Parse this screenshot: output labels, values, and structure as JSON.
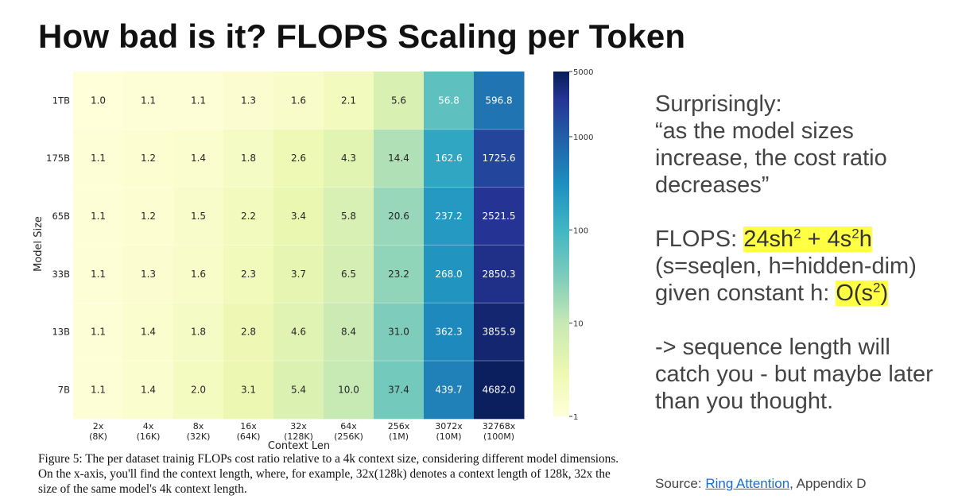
{
  "slide": {
    "title": "How bad is it? FLOPS Scaling per Token"
  },
  "chart_data": {
    "type": "heatmap",
    "title": "",
    "xlabel": "Context Len",
    "ylabel": "Model Size",
    "rows": [
      "1TB",
      "175B",
      "65B",
      "33B",
      "13B",
      "7B"
    ],
    "columns": [
      "2x (8K)",
      "4x (16K)",
      "8x (32K)",
      "16x (64K)",
      "32x (128K)",
      "64x (256K)",
      "256x (1M)",
      "3072x (10M)",
      "32768x (100M)"
    ],
    "column_ticks": [
      {
        "top": "2x",
        "bottom": "(8K)"
      },
      {
        "top": "4x",
        "bottom": "(16K)"
      },
      {
        "top": "8x",
        "bottom": "(32K)"
      },
      {
        "top": "16x",
        "bottom": "(64K)"
      },
      {
        "top": "32x",
        "bottom": "(128K)"
      },
      {
        "top": "64x",
        "bottom": "(256K)"
      },
      {
        "top": "256x",
        "bottom": "(1M)"
      },
      {
        "top": "3072x",
        "bottom": "(10M)"
      },
      {
        "top": "32768x",
        "bottom": "(100M)"
      }
    ],
    "values": [
      [
        "1.0",
        "1.1",
        "1.1",
        "1.3",
        "1.6",
        "2.1",
        "5.6",
        "56.8",
        "596.8"
      ],
      [
        "1.1",
        "1.2",
        "1.4",
        "1.8",
        "2.6",
        "4.3",
        "14.4",
        "162.6",
        "1725.6"
      ],
      [
        "1.1",
        "1.2",
        "1.5",
        "2.2",
        "3.4",
        "5.8",
        "20.6",
        "237.2",
        "2521.5"
      ],
      [
        "1.1",
        "1.3",
        "1.6",
        "2.3",
        "3.7",
        "6.5",
        "23.2",
        "268.0",
        "2850.3"
      ],
      [
        "1.1",
        "1.4",
        "1.8",
        "2.8",
        "4.6",
        "8.4",
        "31.0",
        "362.3",
        "3855.9"
      ],
      [
        "1.1",
        "1.4",
        "2.0",
        "3.1",
        "5.4",
        "10.0",
        "37.4",
        "439.7",
        "4682.0"
      ]
    ],
    "colorbar": {
      "scale": "log",
      "range": [
        1,
        5000
      ],
      "ticks": [
        "5000",
        "1000",
        "100",
        "10",
        "1"
      ],
      "colormap": "YlGnBu"
    }
  },
  "caption": "Figure 5: The per dataset trainig FLOPs cost ratio relative to a 4k context size, considering different model dimensions. On the x-axis, you'll find the context length, where, for example, 32x(128k) denotes a context length of 128k, 32x the size of the same model's 4k context length.",
  "notes": {
    "line1": "Surprisingly:",
    "quote": "“as the model sizes increase, the cost ratio decreases”",
    "flops_label": "FLOPS: ",
    "flops_formula": {
      "a": "24sh",
      "a_exp": "2",
      "b": " + 4s",
      "b_exp": "2",
      "c": "h"
    },
    "params": "(s=seqlen, h=hidden-dim)",
    "given": "given constant h: ",
    "big_o": {
      "pre": "O(s",
      "exp": "2",
      "post": ")"
    },
    "conclusion": "-> sequence length will catch you - but maybe later than you thought."
  },
  "source": {
    "label": "Source: ",
    "link_text": "Ring Attention",
    "suffix": ", Appendix D"
  },
  "colors": {
    "highlight": "#ffff44",
    "link": "#1a6dd0"
  }
}
